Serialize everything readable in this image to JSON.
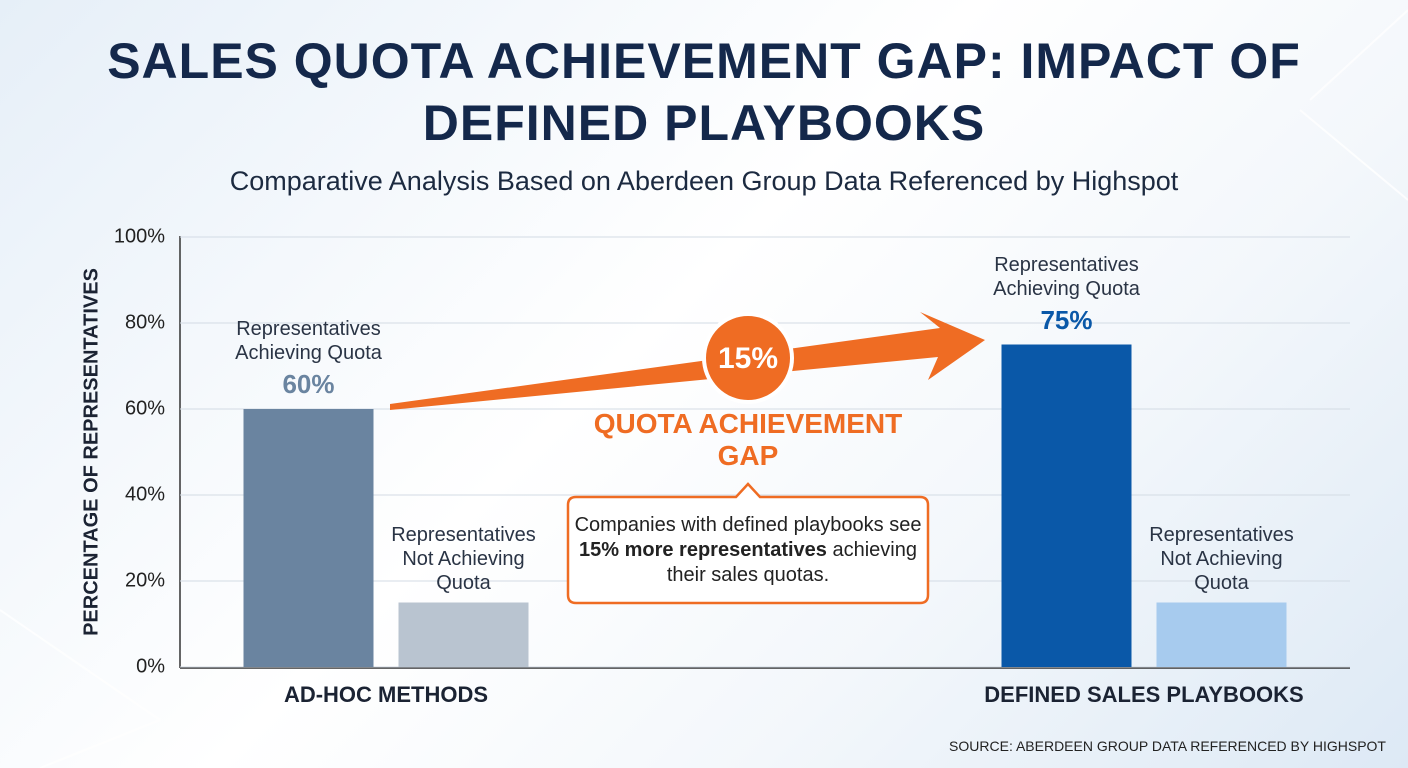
{
  "chart_data": {
    "type": "bar",
    "title": "SALES QUOTA ACHIEVEMENT GAP: IMPACT OF DEFINED PLAYBOOKS",
    "subtitle": "Comparative Analysis Based on Aberdeen Group Data Referenced by Highspot",
    "y_label": "PERCENTAGE OF REPRESENTATIVES",
    "categories": [
      "AD-HOC METHODS",
      "DEFINED SALES PLAYBOOKS"
    ],
    "series": [
      {
        "name": "Representatives Achieving Quota",
        "colors": [
          "#6a84a0",
          "#0a58a8"
        ],
        "values": [
          60,
          75
        ],
        "value_labels": [
          "60%",
          "75%"
        ]
      },
      {
        "name": "Representatives Not Achieving Quota",
        "colors": [
          "#b9c4d0",
          "#a7cbee"
        ],
        "values": [
          15,
          15
        ]
      }
    ],
    "ylim": [
      0,
      100
    ],
    "yticks": [
      {
        "value": 0,
        "label": "0%"
      },
      {
        "value": 20,
        "label": "20%"
      },
      {
        "value": 40,
        "label": "40%"
      },
      {
        "value": 60,
        "label": "60%"
      },
      {
        "value": 80,
        "label": "80%"
      },
      {
        "value": 100,
        "label": "100%"
      }
    ],
    "grid": true,
    "annotation": {
      "gap": "15%",
      "label": "QUOTA ACHIEVEMENT GAP",
      "text_parts": [
        "Companies with defined playbooks see ",
        "15% more representatives",
        " achieving their sales quotas."
      ]
    },
    "source": "SOURCE: ABERDEEN GROUP DATA REFERENCED BY HIGHSPOT"
  }
}
